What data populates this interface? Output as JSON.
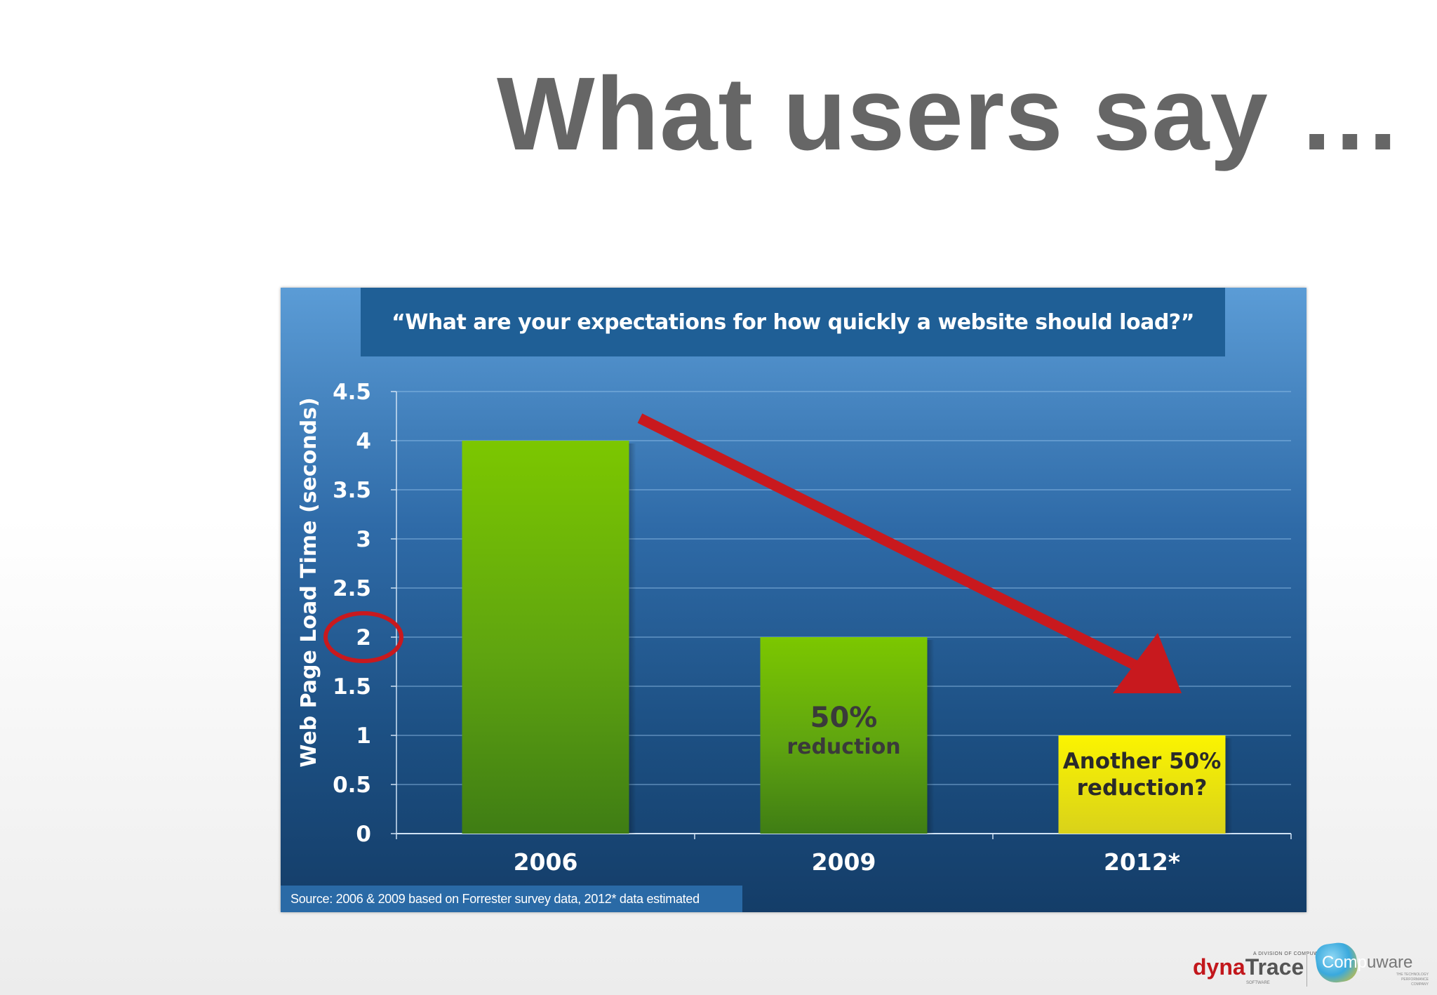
{
  "slide": {
    "title": "What users say …"
  },
  "chart_data": {
    "type": "bar",
    "title": "“What are your expectations for how quickly a website should load?”",
    "ylabel": "Web Page Load Time (seconds)",
    "xlabel": "",
    "categories": [
      "2006",
      "2009",
      "2012*"
    ],
    "values": [
      4,
      2,
      1
    ],
    "ylim": [
      0,
      4.5
    ],
    "yticks": [
      "0",
      "0.5",
      "1",
      "1.5",
      "2",
      "2.5",
      "3",
      "3.5",
      "4",
      "4.5"
    ],
    "ytick_values": [
      0,
      0.5,
      1,
      1.5,
      2,
      2.5,
      3,
      3.5,
      4,
      4.5
    ],
    "grid": true,
    "bar_colors": [
      "#6fb80c",
      "#6fb80c",
      "#f3ec0c"
    ],
    "annotations": [
      {
        "category_index": 1,
        "lines": [
          "50%",
          "reduction"
        ],
        "color": "#3a3a3a"
      },
      {
        "category_index": 2,
        "lines": [
          "Another 50%",
          "reduction?"
        ],
        "color": "#2a2a2a"
      }
    ],
    "highlighted_tick": "2",
    "highlight_color": "#c8191e",
    "trend_arrow_color": "#c8191e",
    "source": "Source: 2006 & 2009 based on Forrester survey data, 2012* data estimated"
  },
  "logos": {
    "dynatrace_small": "A DIVISION OF COMPUWARE",
    "dynatrace_prefix": "dyna",
    "dynatrace_suffix": "Trace",
    "dynatrace_sub": "SOFTWARE",
    "compuware_badge": "Comp",
    "compuware_rest": "uware",
    "compuware_sub": "THE TECHNOLOGY PERFORMANCE COMPANY"
  }
}
